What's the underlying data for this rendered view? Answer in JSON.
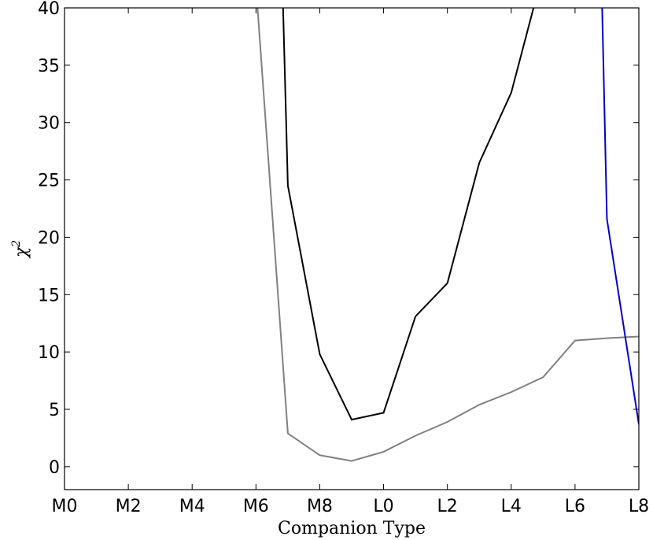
{
  "chart_data": {
    "type": "line",
    "xlabel": "Companion Type",
    "ylabel": "χ",
    "ylabel_superscript": "2",
    "x_tick_labels": [
      "M0",
      "M2",
      "M4",
      "M6",
      "M8",
      "L0",
      "L2",
      "L4",
      "L6",
      "L8"
    ],
    "x_ticks": [
      0,
      2,
      4,
      6,
      8,
      10,
      12,
      14,
      16,
      18
    ],
    "xlim": [
      0,
      18
    ],
    "y_ticks": [
      0,
      5,
      10,
      15,
      20,
      25,
      30,
      35,
      40
    ],
    "y_tick_labels": [
      "0",
      "5",
      "10",
      "15",
      "20",
      "25",
      "30",
      "35",
      "40"
    ],
    "ylim": [
      -2,
      40
    ],
    "grid": false,
    "legend": "none",
    "series": [
      {
        "color": "#000000",
        "x": [
          6.85,
          7,
          8,
          9,
          10,
          11,
          12,
          13,
          14,
          14.7
        ],
        "y": [
          40,
          24.5,
          9.8,
          4.1,
          4.7,
          13.1,
          16,
          26.5,
          32.6,
          40
        ]
      },
      {
        "color": "#808080",
        "x": [
          6.05,
          7,
          8,
          9,
          10,
          11,
          12,
          13,
          14,
          15,
          16,
          17,
          18
        ],
        "y": [
          40,
          2.9,
          1.0,
          0.5,
          1.3,
          2.7,
          3.9,
          5.4,
          6.5,
          7.8,
          11.0,
          11.2,
          11.35
        ]
      },
      {
        "color": "#0000cc",
        "x": [
          16.85,
          17,
          18
        ],
        "y": [
          40,
          21.6,
          3.7
        ]
      }
    ]
  }
}
